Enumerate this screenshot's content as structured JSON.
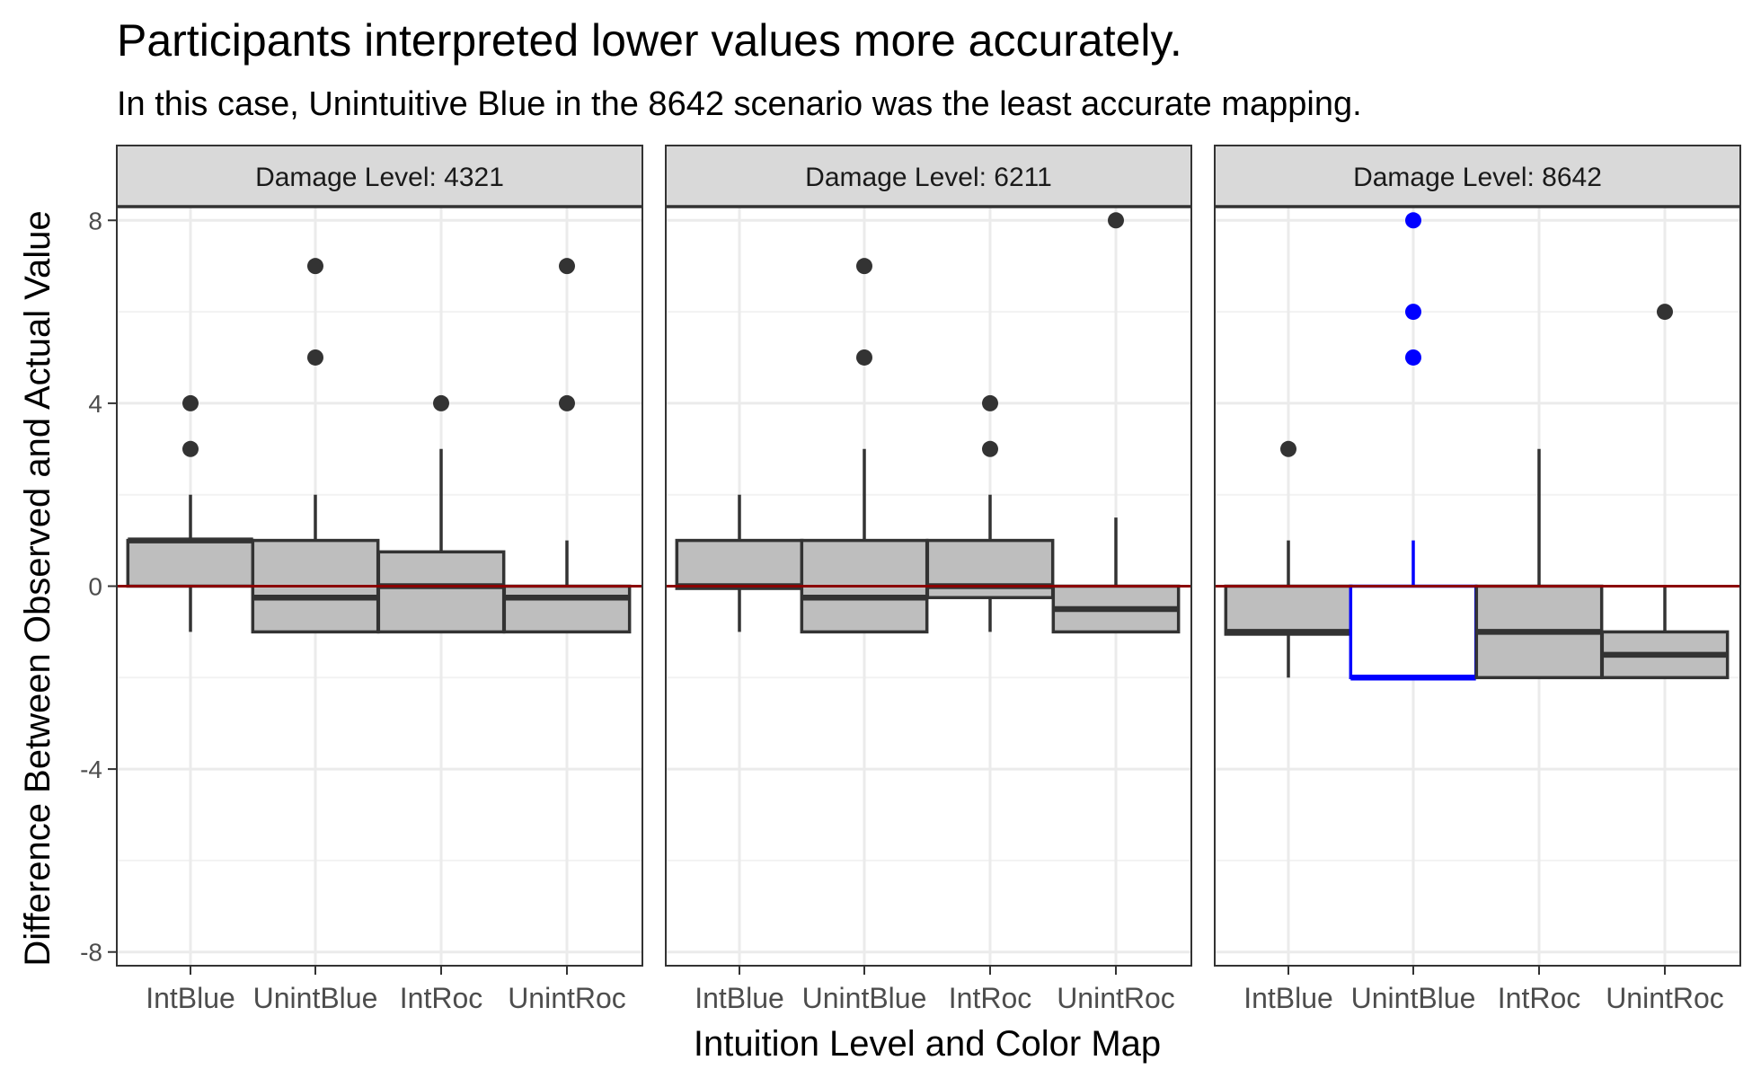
{
  "chart_data": {
    "type": "boxplot",
    "title": "Participants interpreted lower values more accurately.",
    "subtitle": "In this case, Unintuitive Blue in the 8642 scenario was the least accurate mapping.",
    "xlabel": "Intuition Level and Color Map",
    "ylabel": "Difference Between Observed and Actual Value",
    "ylim": [
      -8.3,
      8.3
    ],
    "yticks": [
      -8,
      -4,
      0,
      4,
      8
    ],
    "ytick_labels": [
      "-8",
      "-4",
      "0",
      "4",
      "8"
    ],
    "minor_gridlines": [
      -6,
      -2,
      2,
      6
    ],
    "grid": true,
    "reference_line": {
      "y": 0,
      "color": "#8b0000"
    },
    "categories": [
      "IntBlue",
      "UnintBlue",
      "IntRoc",
      "UnintRoc"
    ],
    "box_fill": "#bebebe",
    "box_stroke": "#333333",
    "highlight_color": "#0000ff",
    "panels": [
      {
        "strip_label": "Damage Level: 4321",
        "boxes": [
          {
            "category": "IntBlue",
            "lower_whisker": -1,
            "q1": 0,
            "median": 1,
            "q3": 1,
            "upper_whisker": 2,
            "outliers": [
              3,
              4
            ],
            "highlight": false
          },
          {
            "category": "UnintBlue",
            "lower_whisker": -1,
            "q1": -1,
            "median": -0.25,
            "q3": 1,
            "upper_whisker": 2,
            "outliers": [
              5,
              7
            ],
            "highlight": false
          },
          {
            "category": "IntRoc",
            "lower_whisker": -1,
            "q1": -1,
            "median": 0,
            "q3": 0.75,
            "upper_whisker": 3,
            "outliers": [
              4
            ],
            "highlight": false
          },
          {
            "category": "UnintRoc",
            "lower_whisker": -1,
            "q1": -1,
            "median": -0.25,
            "q3": 0,
            "upper_whisker": 1,
            "outliers": [
              4,
              7
            ],
            "highlight": false
          }
        ]
      },
      {
        "strip_label": "Damage Level: 6211",
        "boxes": [
          {
            "category": "IntBlue",
            "lower_whisker": -1,
            "q1": -0.05,
            "median": 0,
            "q3": 1,
            "upper_whisker": 2,
            "outliers": [],
            "highlight": false
          },
          {
            "category": "UnintBlue",
            "lower_whisker": -1,
            "q1": -1,
            "median": -0.25,
            "q3": 1,
            "upper_whisker": 3,
            "outliers": [
              5,
              7
            ],
            "highlight": false
          },
          {
            "category": "IntRoc",
            "lower_whisker": -1,
            "q1": -0.25,
            "median": 0,
            "q3": 1,
            "upper_whisker": 2,
            "outliers": [
              3,
              4
            ],
            "highlight": false
          },
          {
            "category": "UnintRoc",
            "lower_whisker": -1,
            "q1": -1,
            "median": -0.5,
            "q3": 0,
            "upper_whisker": 1.5,
            "outliers": [
              8
            ],
            "highlight": false
          }
        ]
      },
      {
        "strip_label": "Damage Level: 8642",
        "boxes": [
          {
            "category": "IntBlue",
            "lower_whisker": -2,
            "q1": -1.05,
            "median": -1,
            "q3": 0,
            "upper_whisker": 1,
            "outliers": [
              3
            ],
            "highlight": false
          },
          {
            "category": "UnintBlue",
            "lower_whisker": -2,
            "q1": -2,
            "median": -2,
            "q3": 0,
            "upper_whisker": 1,
            "outliers": [
              5,
              6,
              8
            ],
            "highlight": true
          },
          {
            "category": "IntRoc",
            "lower_whisker": -2,
            "q1": -2,
            "median": -1,
            "q3": 0,
            "upper_whisker": 3,
            "outliers": [],
            "highlight": false
          },
          {
            "category": "UnintRoc",
            "lower_whisker": -2,
            "q1": -2,
            "median": -1.5,
            "q3": -1,
            "upper_whisker": 0,
            "outliers": [
              6
            ],
            "highlight": false
          }
        ]
      }
    ]
  }
}
